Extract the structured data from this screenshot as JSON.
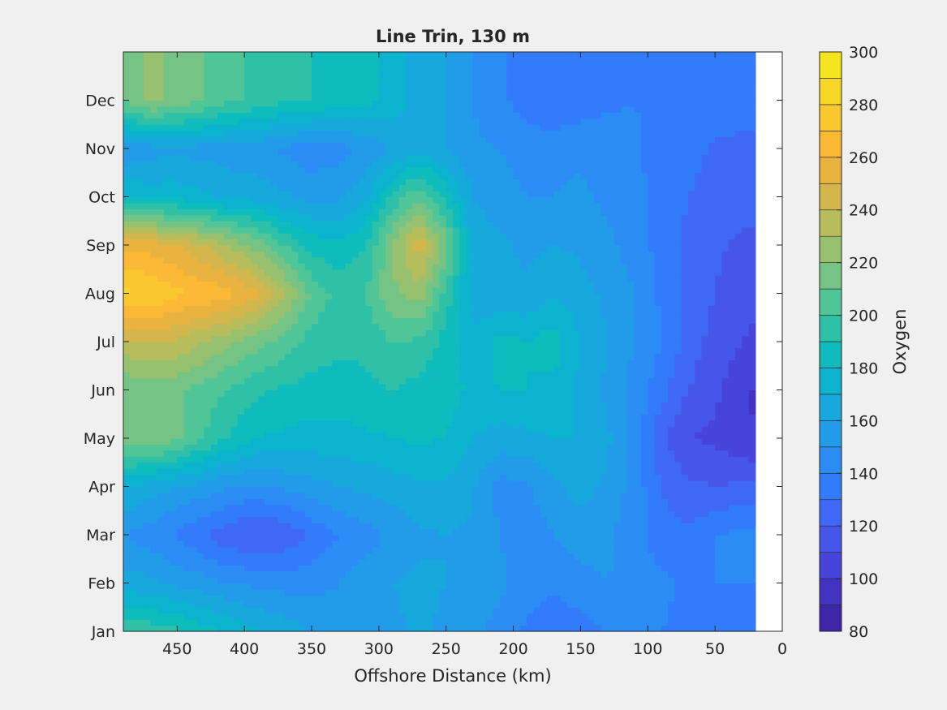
{
  "chart_data": {
    "type": "heatmap",
    "subtype": "filled-contour",
    "title": "Line Trin, 130 m",
    "xlabel": "Offshore Distance (km)",
    "ylabel": "",
    "xlim": [
      0,
      490
    ],
    "x_direction": "reversed",
    "x_ticks": [
      450,
      400,
      350,
      300,
      250,
      200,
      150,
      100,
      50,
      0
    ],
    "y_ticks": [
      "Jan",
      "Feb",
      "Mar",
      "Apr",
      "May",
      "Jun",
      "Jul",
      "Aug",
      "Sep",
      "Oct",
      "Nov",
      "Dec"
    ],
    "colorbar": {
      "label": "Oxygen",
      "limits": [
        80,
        300
      ],
      "ticks": [
        80,
        100,
        120,
        140,
        160,
        180,
        200,
        220,
        240,
        260,
        280,
        300
      ],
      "levels": [
        80,
        90,
        100,
        110,
        120,
        130,
        140,
        150,
        160,
        170,
        180,
        190,
        200,
        210,
        220,
        230,
        240,
        250,
        260,
        270,
        280,
        290,
        300
      ],
      "colormap": [
        "#3e26a8",
        "#4433c3",
        "#4744db",
        "#4656ea",
        "#3f68f6",
        "#327bfb",
        "#2a8cf4",
        "#229be9",
        "#17a8dd",
        "#0bb3cf",
        "#0ebbbd",
        "#2ec1a8",
        "#50c597",
        "#76c485",
        "#98c16f",
        "#b7bc5c",
        "#d3b74c",
        "#eab340",
        "#fbb936",
        "#fbc72e",
        "#f8d627",
        "#f5e51f"
      ]
    },
    "grid_x_km": [
      490,
      470,
      450,
      430,
      410,
      390,
      370,
      350,
      330,
      310,
      290,
      270,
      250,
      230,
      210,
      190,
      170,
      150,
      130,
      110,
      90,
      70,
      50,
      30,
      20
    ],
    "grid_y_month": [
      "Jan",
      "Feb",
      "Mar",
      "Apr",
      "May",
      "Jun",
      "Jul",
      "Aug",
      "Sep",
      "Oct",
      "Nov",
      "Dec"
    ],
    "oxygen_grid": [
      [
        200,
        196,
        192,
        185,
        178,
        172,
        166,
        160,
        156,
        156,
        158,
        162,
        158,
        152,
        146,
        138,
        132,
        136,
        140,
        142,
        140,
        138,
        136,
        132,
        132
      ],
      [
        165,
        162,
        158,
        154,
        150,
        148,
        146,
        146,
        150,
        155,
        160,
        162,
        160,
        158,
        152,
        146,
        142,
        146,
        150,
        148,
        142,
        138,
        140,
        140,
        140
      ],
      [
        150,
        145,
        138,
        130,
        122,
        118,
        122,
        132,
        140,
        146,
        152,
        158,
        160,
        158,
        150,
        144,
        150,
        156,
        152,
        144,
        134,
        132,
        140,
        142,
        142
      ],
      [
        172,
        165,
        160,
        156,
        150,
        148,
        152,
        156,
        160,
        162,
        165,
        168,
        168,
        162,
        146,
        148,
        158,
        164,
        158,
        146,
        130,
        122,
        120,
        122,
        122
      ],
      [
        215,
        220,
        212,
        200,
        188,
        180,
        178,
        176,
        176,
        178,
        180,
        182,
        180,
        170,
        165,
        168,
        170,
        170,
        162,
        148,
        122,
        110,
        108,
        102,
        100
      ],
      [
        210,
        214,
        212,
        205,
        198,
        192,
        188,
        186,
        186,
        188,
        190,
        186,
        184,
        178,
        180,
        180,
        176,
        168,
        158,
        146,
        134,
        120,
        112,
        104,
        98
      ],
      [
        238,
        242,
        238,
        230,
        222,
        214,
        206,
        196,
        192,
        192,
        200,
        198,
        186,
        172,
        184,
        180,
        186,
        170,
        160,
        150,
        140,
        126,
        116,
        110,
        108
      ],
      [
        282,
        280,
        272,
        268,
        262,
        252,
        232,
        208,
        196,
        200,
        218,
        226,
        196,
        166,
        160,
        162,
        168,
        164,
        158,
        150,
        138,
        128,
        120,
        114,
        112
      ],
      [
        258,
        256,
        250,
        240,
        228,
        216,
        200,
        186,
        182,
        190,
        220,
        246,
        216,
        168,
        162,
        158,
        160,
        158,
        152,
        146,
        136,
        128,
        122,
        118,
        118
      ],
      [
        180,
        176,
        176,
        172,
        168,
        166,
        162,
        156,
        158,
        168,
        192,
        210,
        186,
        160,
        154,
        150,
        150,
        152,
        148,
        144,
        134,
        130,
        126,
        124,
        124
      ],
      [
        150,
        156,
        158,
        156,
        154,
        152,
        148,
        144,
        146,
        152,
        160,
        166,
        160,
        152,
        150,
        146,
        146,
        148,
        146,
        142,
        136,
        134,
        128,
        126,
        126
      ],
      [
        212,
        224,
        216,
        210,
        202,
        198,
        192,
        190,
        186,
        184,
        176,
        166,
        160,
        150,
        142,
        136,
        130,
        134,
        138,
        140,
        136,
        132,
        136,
        138,
        138
      ]
    ],
    "data_xmin_km": 20
  }
}
